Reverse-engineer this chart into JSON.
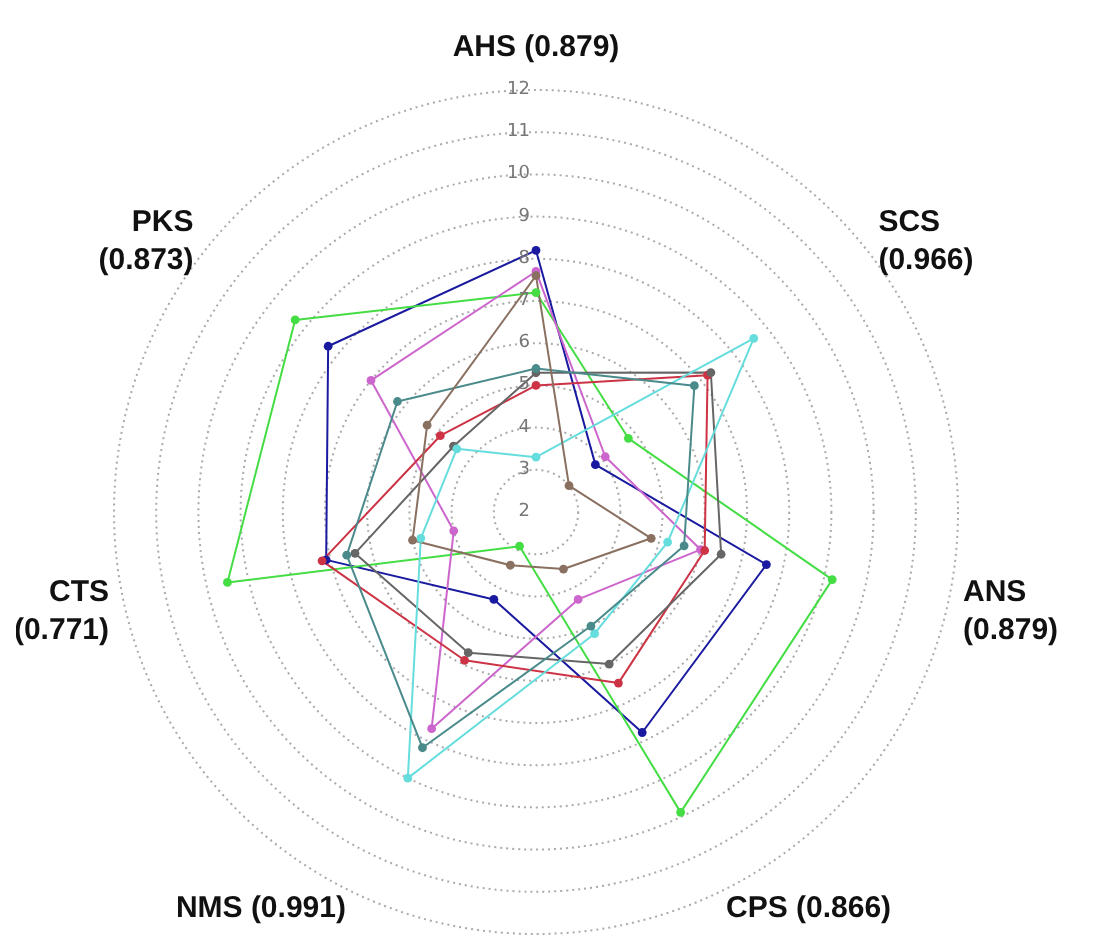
{
  "chart_data": {
    "type": "radar",
    "categories": [
      "AHS (0.879)",
      "SCS (0.966)",
      "ANS (0.879)",
      "CPS (0.866)",
      "NMS (0.991)",
      "CTS (0.771)",
      "PKS (0.873)"
    ],
    "ylim": [
      2,
      12
    ],
    "yticks": [
      2,
      3,
      4,
      5,
      6,
      7,
      8,
      9,
      10,
      11,
      12
    ],
    "grid": true,
    "marker": "circle",
    "line_style": "solid",
    "series": [
      {
        "color": "#1a1aa0",
        "values": [
          8.2,
          3.8,
          7.6,
          7.8,
          4.3,
          7.1,
          8.3
        ]
      },
      {
        "color": "#44dd44",
        "values": [
          7.2,
          4.8,
          9.2,
          9.9,
          2.9,
          9.5,
          9.3
        ]
      },
      {
        "color": "#cc66cc",
        "values": [
          7.7,
          4.1,
          6.0,
          4.3,
          7.7,
          4.0,
          7.0
        ]
      },
      {
        "color": "#cc3344",
        "values": [
          5.0,
          7.2,
          6.1,
          6.5,
          5.9,
          7.2,
          4.9
        ]
      },
      {
        "color": "#666666",
        "values": [
          5.3,
          7.3,
          6.5,
          6.0,
          5.7,
          6.4,
          4.5
        ]
      },
      {
        "color": "#66dddd",
        "values": [
          3.3,
          8.6,
          5.2,
          5.2,
          9.0,
          4.8,
          4.4
        ]
      },
      {
        "color": "#4a8a8a",
        "values": [
          5.4,
          6.8,
          5.6,
          5.0,
          8.2,
          6.6,
          6.2
        ]
      },
      {
        "color": "#8a7060",
        "values": [
          7.6,
          3.0,
          4.8,
          3.5,
          3.4,
          5.0,
          5.3
        ]
      }
    ]
  }
}
